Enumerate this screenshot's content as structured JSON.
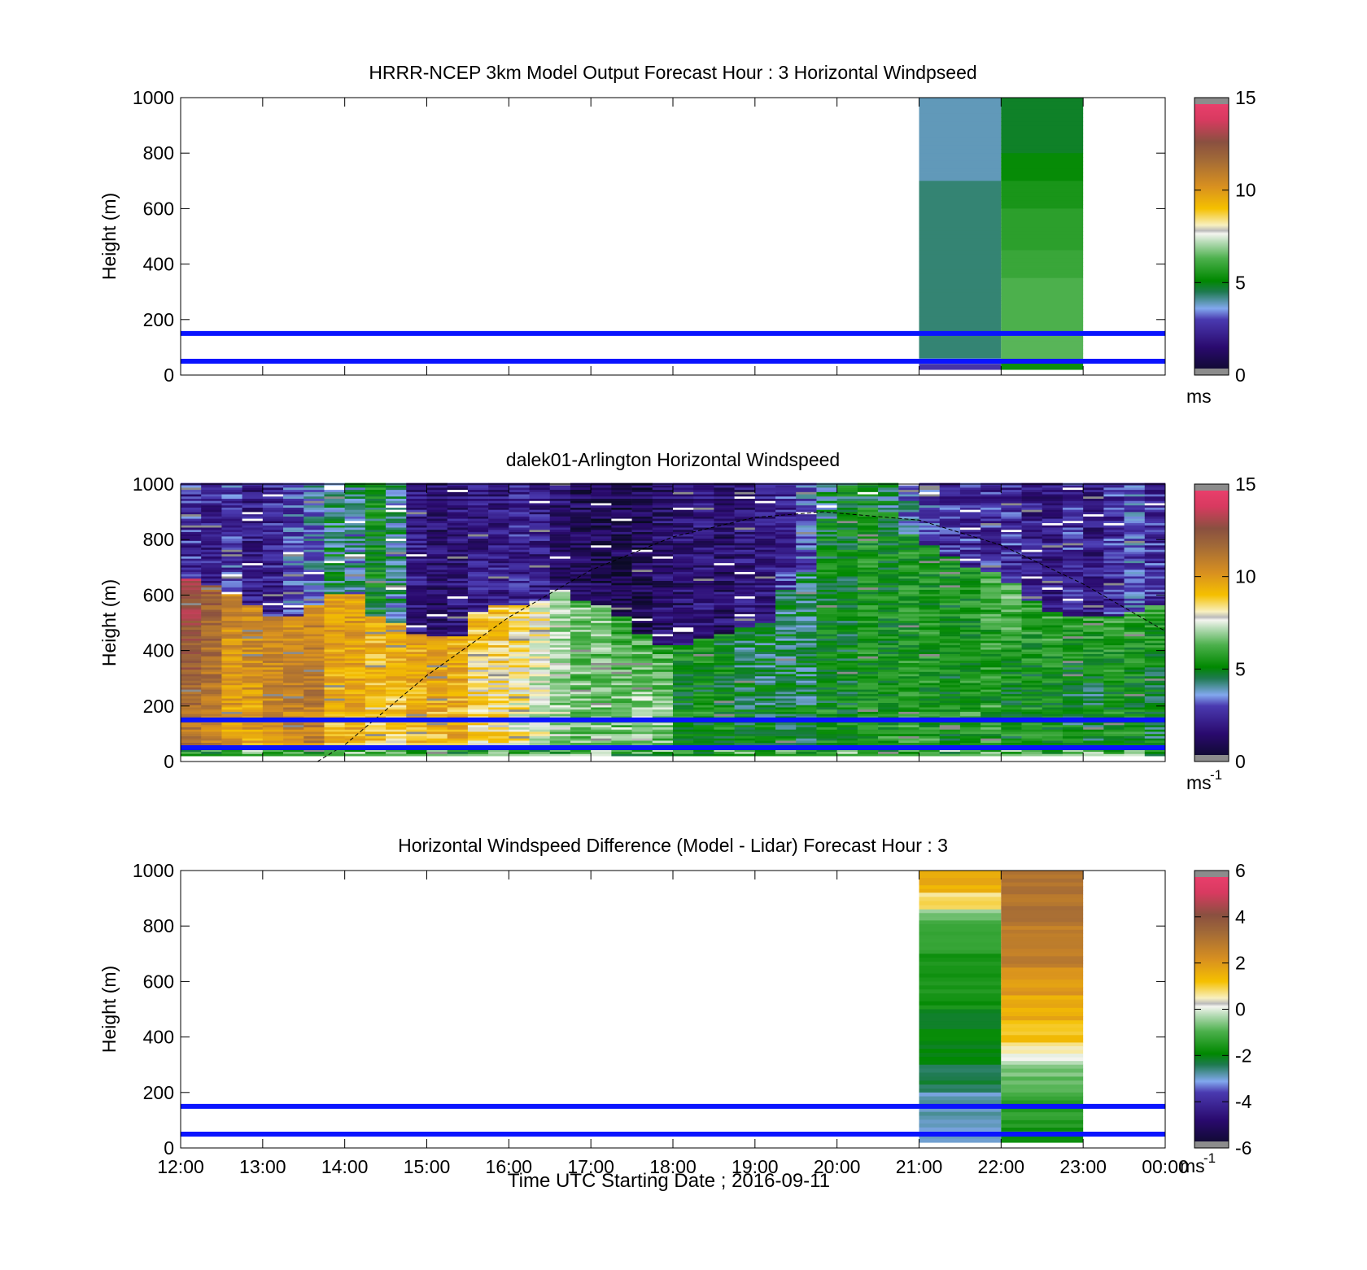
{
  "figure": {
    "xlabel": "Time UTC  Starting Date ; 2016-09-11",
    "x_ticks": [
      "12:00",
      "13:00",
      "14:00",
      "15:00",
      "16:00",
      "17:00",
      "18:00",
      "19:00",
      "20:00",
      "21:00",
      "22:00",
      "23:00",
      "00:00"
    ]
  },
  "chart_data": [
    {
      "type": "heatmap",
      "title": "HRRR-NCEP 3km Model Output   Forecast Hour : 3 Horizontal Windpseed",
      "ylabel": "Height (m)",
      "xlim": [
        "12:00",
        "00:00"
      ],
      "ylim": [
        0,
        1000
      ],
      "y_ticks": [
        "0",
        "200",
        "400",
        "600",
        "800",
        "1000"
      ],
      "grid": false,
      "colorbar": {
        "range": [
          0,
          15
        ],
        "ticks": [
          "0",
          "5",
          "10",
          "15"
        ],
        "unit": "ms"
      },
      "reference_lines_m": [
        50,
        150
      ],
      "columns": [
        {
          "start": "21:00",
          "end": "22:00",
          "bottom_m": 20,
          "layers": [
            {
              "top_m": 1000,
              "value": 3.9
            },
            {
              "top_m": 700,
              "value": 4.3
            },
            {
              "top_m": 60,
              "value": 3.6
            },
            {
              "top_m": 40,
              "value": 2.8
            }
          ]
        },
        {
          "start": "22:00",
          "end": "23:00",
          "bottom_m": 20,
          "layers": [
            {
              "top_m": 1000,
              "value": 4.8
            },
            {
              "top_m": 800,
              "value": 5.2
            },
            {
              "top_m": 700,
              "value": 5.5
            },
            {
              "top_m": 600,
              "value": 5.8
            },
            {
              "top_m": 450,
              "value": 6.0
            },
            {
              "top_m": 350,
              "value": 6.3
            },
            {
              "top_m": 150,
              "value": 6.4
            },
            {
              "top_m": 50,
              "value": 5.3
            }
          ]
        }
      ]
    },
    {
      "type": "heatmap",
      "title": "dalek01-Arlington  Horizontal Windspeed",
      "ylabel": "Height (m)",
      "xlim": [
        "12:00",
        "00:00"
      ],
      "ylim": [
        0,
        1000
      ],
      "y_ticks": [
        "0",
        "200",
        "400",
        "600",
        "800",
        "1000"
      ],
      "grid": false,
      "colorbar": {
        "range": [
          0,
          15
        ],
        "ticks": [
          "0",
          "5",
          "10",
          "15"
        ],
        "unit": "ms",
        "unit_exp": "-1"
      },
      "reference_lines_m": [
        50,
        150
      ],
      "profile_interval_min": 15,
      "profiles": [
        {
          "t": "12:00",
          "top": 13.0,
          "mid": 11.5,
          "up": 2.5,
          "top_layer_m": 660
        },
        {
          "t": "12:15",
          "top": 12.0,
          "mid": 11.0,
          "up": 2.2,
          "top_layer_m": 630
        },
        {
          "t": "12:30",
          "top": 10.5,
          "mid": 10.0,
          "up": 2.8,
          "top_layer_m": 600
        },
        {
          "t": "12:45",
          "top": 10.5,
          "mid": 10.0,
          "up": 2.0,
          "top_layer_m": 560
        },
        {
          "t": "13:00",
          "top": 10.5,
          "mid": 10.5,
          "up": 2.2,
          "top_layer_m": 520
        },
        {
          "t": "13:15",
          "top": 10.0,
          "mid": 11.0,
          "up": 3.0,
          "top_layer_m": 520
        },
        {
          "t": "13:30",
          "top": 10.5,
          "mid": 11.0,
          "up": 3.5,
          "top_layer_m": 560
        },
        {
          "t": "13:45",
          "top": 10.0,
          "mid": 9.5,
          "up": 4.5,
          "top_layer_m": 600
        },
        {
          "t": "14:00",
          "top": 10.0,
          "mid": 9.5,
          "up": 4.0,
          "top_layer_m": 600
        },
        {
          "t": "14:15",
          "top": 9.5,
          "mid": 9.0,
          "up": 5.0,
          "top_layer_m": 520
        },
        {
          "t": "14:30",
          "top": 9.5,
          "mid": 9.0,
          "up": 4.0,
          "top_layer_m": 500
        },
        {
          "t": "14:45",
          "top": 9.5,
          "mid": 9.5,
          "up": 2.0,
          "top_layer_m": 460
        },
        {
          "t": "15:00",
          "top": 9.5,
          "mid": 9.5,
          "up": 1.5,
          "top_layer_m": 450
        },
        {
          "t": "15:15",
          "top": 9.5,
          "mid": 9.5,
          "up": 1.8,
          "top_layer_m": 450
        },
        {
          "t": "15:30",
          "top": 9.0,
          "mid": 8.5,
          "up": 2.0,
          "top_layer_m": 540
        },
        {
          "t": "15:45",
          "top": 9.0,
          "mid": 8.5,
          "up": 2.0,
          "top_layer_m": 560
        },
        {
          "t": "16:00",
          "top": 8.5,
          "mid": 8.0,
          "up": 2.2,
          "top_layer_m": 560
        },
        {
          "t": "16:15",
          "top": 8.0,
          "mid": 7.5,
          "up": 2.0,
          "top_layer_m": 580
        },
        {
          "t": "16:30",
          "top": 7.0,
          "mid": 7.0,
          "up": 1.5,
          "top_layer_m": 620
        },
        {
          "t": "16:45",
          "top": 6.5,
          "mid": 6.5,
          "up": 1.2,
          "top_layer_m": 580
        },
        {
          "t": "17:00",
          "top": 6.5,
          "mid": 6.5,
          "up": 1.0,
          "top_layer_m": 560
        },
        {
          "t": "17:15",
          "top": 6.0,
          "mid": 6.5,
          "up": 1.0,
          "top_layer_m": 520
        },
        {
          "t": "17:30",
          "top": 6.0,
          "mid": 7.0,
          "up": 1.0,
          "top_layer_m": 460
        },
        {
          "t": "17:45",
          "top": 6.0,
          "mid": 6.5,
          "up": 1.5,
          "top_layer_m": 420
        },
        {
          "t": "18:00",
          "top": 5.5,
          "mid": 5.0,
          "up": 1.5,
          "top_layer_m": 420
        },
        {
          "t": "18:15",
          "top": 5.5,
          "mid": 5.0,
          "up": 1.8,
          "top_layer_m": 440
        },
        {
          "t": "18:30",
          "top": 5.0,
          "mid": 5.0,
          "up": 1.5,
          "top_layer_m": 460
        },
        {
          "t": "18:45",
          "top": 4.5,
          "mid": 4.5,
          "up": 1.8,
          "top_layer_m": 480
        },
        {
          "t": "19:00",
          "top": 4.5,
          "mid": 4.5,
          "up": 2.0,
          "top_layer_m": 500
        },
        {
          "t": "19:15",
          "top": 4.5,
          "mid": 4.5,
          "up": 2.5,
          "top_layer_m": 620
        },
        {
          "t": "19:30",
          "top": 4.5,
          "mid": 4.5,
          "up": 3.0,
          "top_layer_m": 680
        },
        {
          "t": "19:45",
          "top": 5.0,
          "mid": 5.0,
          "up": 4.5,
          "top_layer_m": 800
        },
        {
          "t": "20:00",
          "top": 5.0,
          "mid": 5.0,
          "up": 5.0,
          "top_layer_m": 860
        },
        {
          "t": "20:15",
          "top": 5.5,
          "mid": 5.5,
          "up": 5.0,
          "top_layer_m": 900
        },
        {
          "t": "20:30",
          "top": 5.0,
          "mid": 5.5,
          "up": 4.5,
          "top_layer_m": 900
        },
        {
          "t": "20:45",
          "top": 5.5,
          "mid": 5.5,
          "up": 3.5,
          "top_layer_m": 820
        },
        {
          "t": "21:00",
          "top": 5.5,
          "mid": 5.5,
          "up": 3.0,
          "top_layer_m": 780
        },
        {
          "t": "21:15",
          "top": 5.5,
          "mid": 5.0,
          "up": 2.5,
          "top_layer_m": 740
        },
        {
          "t": "21:30",
          "top": 5.5,
          "mid": 5.5,
          "up": 2.5,
          "top_layer_m": 700
        },
        {
          "t": "21:45",
          "top": 6.0,
          "mid": 5.5,
          "up": 2.5,
          "top_layer_m": 680
        },
        {
          "t": "22:00",
          "top": 6.5,
          "mid": 5.0,
          "up": 2.5,
          "top_layer_m": 640
        },
        {
          "t": "22:15",
          "top": 6.0,
          "mid": 5.0,
          "up": 2.0,
          "top_layer_m": 580
        },
        {
          "t": "22:30",
          "top": 6.0,
          "mid": 5.0,
          "up": 2.0,
          "top_layer_m": 540
        },
        {
          "t": "22:45",
          "top": 6.0,
          "mid": 4.5,
          "up": 2.5,
          "top_layer_m": 520
        },
        {
          "t": "23:00",
          "top": 6.0,
          "mid": 4.5,
          "up": 2.0,
          "top_layer_m": 520
        },
        {
          "t": "23:15",
          "top": 6.0,
          "mid": 5.0,
          "up": 2.5,
          "top_layer_m": 520
        },
        {
          "t": "23:30",
          "top": 6.0,
          "mid": 5.0,
          "up": 3.0,
          "top_layer_m": 540
        },
        {
          "t": "23:45",
          "top": 6.0,
          "mid": 4.5,
          "up": 2.5,
          "top_layer_m": 560
        }
      ],
      "data_end": "23:50",
      "sun_curve": [
        {
          "t": "13:40",
          "h_m": 0
        },
        {
          "t": "14:00",
          "h_m": 60
        },
        {
          "t": "15:00",
          "h_m": 310
        },
        {
          "t": "16:00",
          "h_m": 520
        },
        {
          "t": "17:00",
          "h_m": 690
        },
        {
          "t": "18:00",
          "h_m": 810
        },
        {
          "t": "19:00",
          "h_m": 880
        },
        {
          "t": "19:50",
          "h_m": 900
        },
        {
          "t": "21:00",
          "h_m": 870
        },
        {
          "t": "22:00",
          "h_m": 780
        },
        {
          "t": "23:00",
          "h_m": 640
        },
        {
          "t": "00:00",
          "h_m": 470
        }
      ]
    },
    {
      "type": "heatmap",
      "title": "Horizontal Windspeed Difference (Model - Lidar) Forecast Hour : 3",
      "ylabel": "Height (m)",
      "xlim": [
        "12:00",
        "00:00"
      ],
      "ylim": [
        0,
        1000
      ],
      "y_ticks": [
        "0",
        "200",
        "400",
        "600",
        "800",
        "1000"
      ],
      "grid": false,
      "colorbar": {
        "range": [
          -6,
          6
        ],
        "ticks": [
          "-6",
          "-4",
          "-2",
          "0",
          "2",
          "4",
          "6"
        ],
        "unit": "ms",
        "unit_exp": "-1"
      },
      "reference_lines_m": [
        50,
        150
      ],
      "columns": [
        {
          "start": "21:00",
          "end": "22:00",
          "bottom_m": 20,
          "layers": [
            {
              "top_m": 1000,
              "value": 1.5
            },
            {
              "top_m": 920,
              "value": 0.8
            },
            {
              "top_m": 860,
              "value": -0.5
            },
            {
              "top_m": 820,
              "value": -1.2
            },
            {
              "top_m": 700,
              "value": -1.6
            },
            {
              "top_m": 500,
              "value": -2.0
            },
            {
              "top_m": 300,
              "value": -2.4
            },
            {
              "top_m": 200,
              "value": -2.8
            },
            {
              "top_m": 60,
              "value": -3.0
            }
          ]
        },
        {
          "start": "22:00",
          "end": "23:00",
          "bottom_m": 20,
          "layers": [
            {
              "top_m": 1000,
              "value": 3.0
            },
            {
              "top_m": 800,
              "value": 2.7
            },
            {
              "top_m": 650,
              "value": 2.0
            },
            {
              "top_m": 550,
              "value": 1.6
            },
            {
              "top_m": 460,
              "value": 1.2
            },
            {
              "top_m": 380,
              "value": 0.6
            },
            {
              "top_m": 340,
              "value": 0.0
            },
            {
              "top_m": 300,
              "value": -0.7
            },
            {
              "top_m": 200,
              "value": -1.3
            },
            {
              "top_m": 100,
              "value": -1.6
            }
          ]
        }
      ]
    }
  ]
}
